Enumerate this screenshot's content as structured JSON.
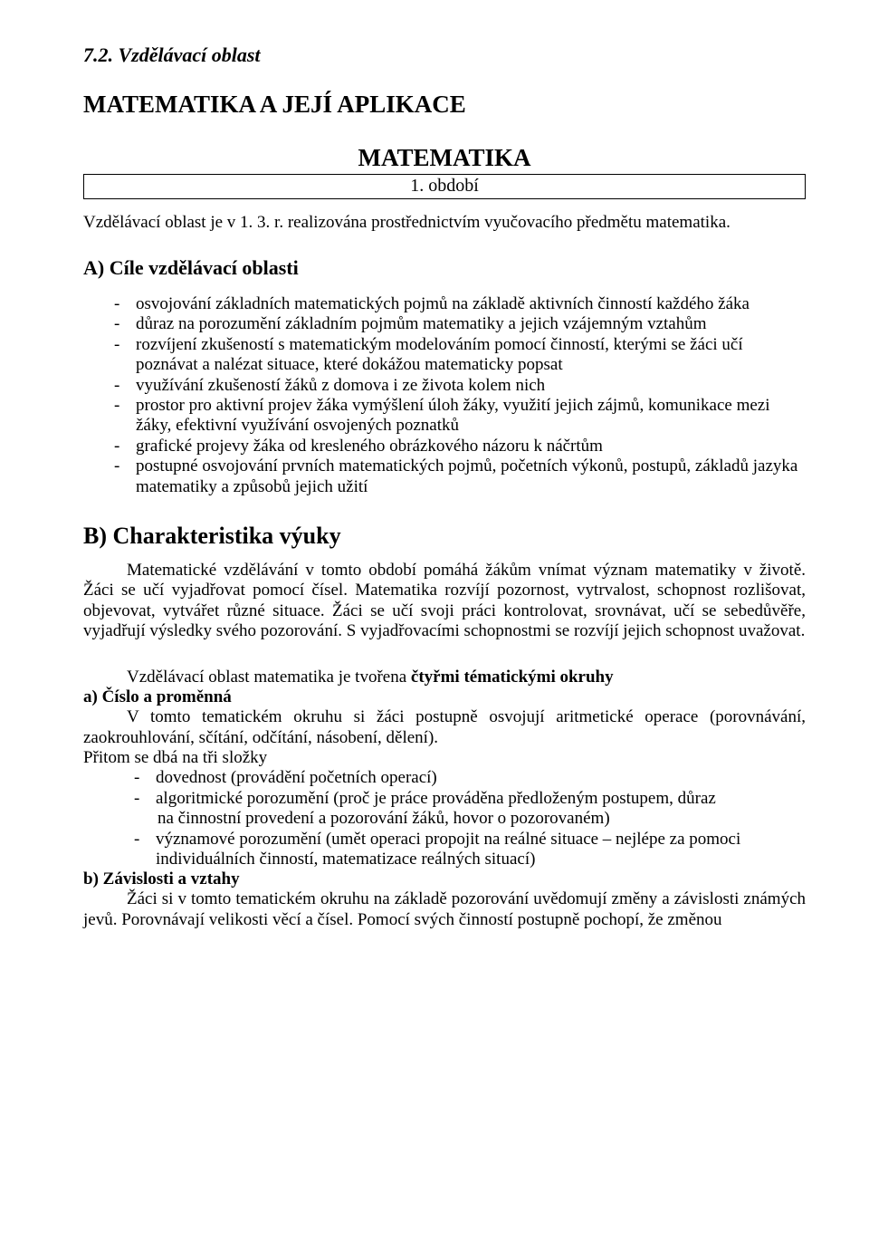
{
  "section_number": "7.2. Vzdělávací oblast",
  "main_title": "MATEMATIKA A JEJÍ APLIKACE",
  "subject_title": "MATEMATIKA",
  "period_label": "1. období",
  "intro_text": "Vzdělávací oblast je v 1. 3. r. realizována prostřednictvím vyučovacího předmětu matematika.",
  "section_a": {
    "heading": "A) Cíle vzdělávací oblasti",
    "items": [
      "osvojování základních matematických pojmů na základě aktivních činností každého žáka",
      "důraz na porozumění základním pojmům matematiky a jejich vzájemným vztahům",
      "rozvíjení zkušeností s matematickým modelováním pomocí činností, kterými se žáci učí poznávat a nalézat situace, které dokážou matematicky popsat",
      "využívání zkušeností žáků z domova i ze života kolem nich",
      "prostor pro aktivní projev žáka vymýšlení úloh žáky, využití jejich zájmů, komunikace mezi žáky, efektivní využívání osvojených poznatků",
      "grafické projevy žáka od kresleného obrázkového názoru k náčrtům",
      "postupné osvojování prvních matematických pojmů, početních výkonů, postupů, základů jazyka matematiky a způsobů jejich užití"
    ]
  },
  "section_b": {
    "heading": "B) Charakteristika výuky",
    "para1": "Matematické vzdělávání v tomto období pomáhá žákům vnímat význam matematiky v životě. Žáci se učí vyjadřovat pomocí čísel. Matematika rozvíjí pozornost, vytrvalost, schopnost rozlišovat, objevovat, vytvářet různé situace. Žáci se učí svoji práci kontrolovat, srovnávat, učí se sebedůvěře, vyjadřují výsledky svého pozorování. S vyjadřovacími schopnostmi se rozvíjí jejich schopnost uvažovat.",
    "para2_prefix": "Vzdělávací oblast matematika je tvořena ",
    "para2_bold": "čtyřmi tématickými okruhy",
    "topic_a": {
      "label": "a) Číslo a proměnná",
      "para": "V tomto tematickém okruhu si žáci postupně osvojují aritmetické operace (porovnávání, zaokrouhlování, sčítání, odčítání, násobení, dělení).",
      "sub_label": "Přitom se dbá na tři složky",
      "items": [
        {
          "main": "dovednost (provádění početních operací)",
          "sub": ""
        },
        {
          "main": "algoritmické porozumění (proč je práce prováděna předloženým postupem, důraz",
          "sub": "na činnostní provedení a pozorování žáků, hovor o pozorovaném)"
        },
        {
          "main": "významové porozumění (umět operaci propojit na reálné situace – nejlépe za pomoci individuálních činností, matematizace reálných situací)",
          "sub": ""
        }
      ]
    },
    "topic_b": {
      "label": "b) Závislosti a vztahy",
      "para": "Žáci si v tomto tematickém okruhu na základě pozorování uvědomují změny a závislosti známých jevů. Porovnávají velikosti věcí a čísel. Pomocí svých činností postupně pochopí, že změnou"
    }
  }
}
